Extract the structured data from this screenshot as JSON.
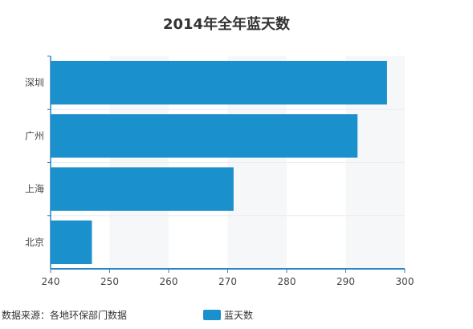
{
  "chart_data": {
    "type": "bar",
    "orientation": "horizontal",
    "title": "2014年全年蓝天数",
    "categories": [
      "深圳",
      "广州",
      "上海",
      "北京"
    ],
    "series": [
      {
        "name": "蓝天数",
        "values": [
          297,
          292,
          271,
          247
        ]
      }
    ],
    "xlim": [
      240,
      300
    ],
    "xticks": [
      240,
      250,
      260,
      270,
      280,
      290,
      300
    ],
    "xlabel": "",
    "ylabel": "",
    "grid": true,
    "legend_position": "bottom"
  },
  "source_note": "数据来源：各地环保部门数据",
  "colors": {
    "bar": "#1a90cc",
    "axis": "#2b86c5",
    "grid": "#eeeeee",
    "band": "#f6f7f9"
  }
}
